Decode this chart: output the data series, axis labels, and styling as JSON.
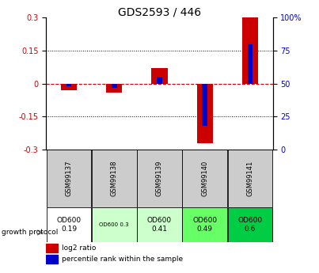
{
  "title": "GDS2593 / 446",
  "samples": [
    "GSM99137",
    "GSM99138",
    "GSM99139",
    "GSM99140",
    "GSM99141"
  ],
  "log2_ratio": [
    -0.03,
    -0.04,
    0.07,
    -0.27,
    0.3
  ],
  "pct_rank": [
    48,
    47,
    55,
    18,
    80
  ],
  "ylim_left": [
    -0.3,
    0.3
  ],
  "ylim_right": [
    0,
    100
  ],
  "yticks_left": [
    -0.3,
    -0.15,
    0,
    0.15,
    0.3
  ],
  "yticks_right": [
    0,
    25,
    50,
    75,
    100
  ],
  "red_color": "#cc0000",
  "blue_color": "#0000cc",
  "protocol_labels": [
    "OD600\n0.19",
    "OD600 0.3",
    "OD600\n0.41",
    "OD600\n0.49",
    "OD600\n0.6"
  ],
  "protocol_bg": [
    "#ffffff",
    "#ccffcc",
    "#ccffcc",
    "#66ff66",
    "#00cc44"
  ],
  "protocol_fontsize": [
    6.5,
    5.0,
    6.5,
    6.5,
    6.5
  ],
  "sample_bg": "#cccccc",
  "legend_items": [
    "log2 ratio",
    "percentile rank within the sample"
  ],
  "legend_colors": [
    "#cc0000",
    "#0000cc"
  ],
  "title_fontsize": 10,
  "tick_fontsize": 7,
  "gsm_fontsize": 6
}
